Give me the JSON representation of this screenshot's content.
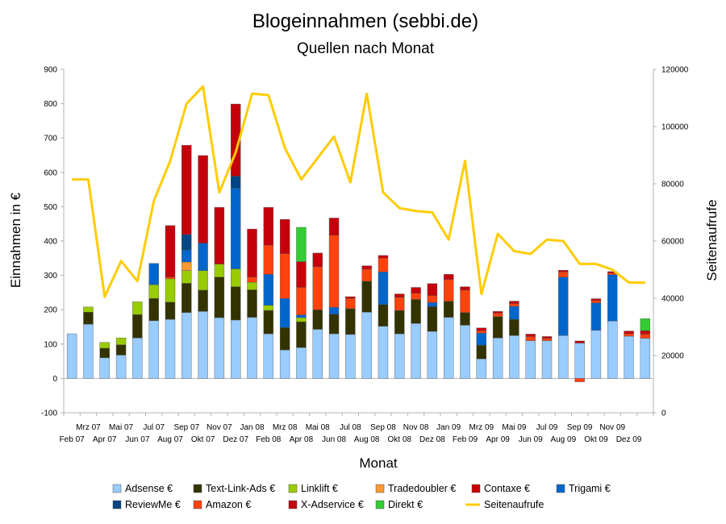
{
  "chart_data": {
    "type": "bar",
    "stacked": true,
    "title": "Blogeinnahmen (sebbi.de)",
    "subtitle": "Quellen nach Monat",
    "xlabel": "Monat",
    "ylabel": "Einnahmen in €",
    "y2label": "Seitenaufrufe",
    "ylim": [
      -100,
      900
    ],
    "yticks": [
      -100,
      0,
      100,
      200,
      300,
      400,
      500,
      600,
      700,
      800,
      900
    ],
    "y2lim": [
      0,
      120000
    ],
    "y2ticks": [
      0,
      20000,
      40000,
      60000,
      80000,
      100000,
      120000
    ],
    "grid": false,
    "legend_position": "bottom",
    "categories": [
      "Feb 07",
      "Mrz 07",
      "Apr 07",
      "Mai 07",
      "Jun 07",
      "Jul 07",
      "Aug 07",
      "Sep 07",
      "Okt 07",
      "Nov 07",
      "Dez 07",
      "Jan 08",
      "Feb 08",
      "Mrz 08",
      "Apr 08",
      "Mai 08",
      "Jun 08",
      "Jul 08",
      "Aug 08",
      "Sep 08",
      "Okt 08",
      "Nov 08",
      "Dez 08",
      "Jan 09",
      "Feb 09",
      "Mrz 09",
      "Apr 09",
      "Mai 09",
      "Jun 09",
      "Jul 09",
      "Aug 09",
      "Sep 09",
      "Okt 09",
      "Nov 09",
      "Dez 09",
      ""
    ],
    "series": [
      {
        "name": "Adsense €",
        "color": "#99ccff",
        "values": [
          130,
          158,
          60,
          68,
          118,
          168,
          172,
          192,
          195,
          177,
          170,
          178,
          130,
          83,
          90,
          143,
          130,
          128,
          193,
          152,
          130,
          160,
          137,
          178,
          155,
          57,
          118,
          125,
          110,
          110,
          125,
          103,
          140,
          167,
          123,
          117
        ]
      },
      {
        "name": "Text-Link-Ads €",
        "color": "#333300",
        "values": [
          0,
          35,
          28,
          30,
          68,
          65,
          50,
          85,
          62,
          118,
          97,
          80,
          68,
          65,
          75,
          57,
          57,
          75,
          90,
          63,
          68,
          70,
          72,
          47,
          37,
          40,
          62,
          47,
          0,
          0,
          0,
          0,
          0,
          0,
          0,
          0
        ]
      },
      {
        "name": "Linklift €",
        "color": "#99cc00",
        "values": [
          0,
          15,
          17,
          20,
          37,
          40,
          68,
          37,
          57,
          38,
          52,
          22,
          15,
          0,
          12,
          0,
          0,
          0,
          0,
          0,
          0,
          0,
          0,
          0,
          0,
          0,
          0,
          0,
          0,
          0,
          0,
          0,
          0,
          0,
          0,
          0
        ]
      },
      {
        "name": "Tradedoubler €",
        "color": "#ff9933",
        "values": [
          0,
          0,
          0,
          0,
          0,
          0,
          0,
          25,
          0,
          0,
          0,
          0,
          0,
          0,
          0,
          0,
          0,
          0,
          0,
          0,
          0,
          0,
          0,
          0,
          0,
          0,
          0,
          0,
          0,
          0,
          0,
          0,
          0,
          0,
          0,
          0
        ]
      },
      {
        "name": "Contaxe €",
        "color": "#cc0000",
        "values": [
          0,
          0,
          0,
          0,
          0,
          0,
          0,
          0,
          0,
          0,
          0,
          0,
          0,
          0,
          0,
          0,
          0,
          0,
          0,
          0,
          0,
          0,
          0,
          0,
          0,
          0,
          0,
          0,
          0,
          0,
          0,
          0,
          0,
          0,
          0,
          0
        ]
      },
      {
        "name": "Trigami €",
        "color": "#0066cc",
        "values": [
          0,
          0,
          0,
          0,
          0,
          62,
          0,
          35,
          80,
          0,
          235,
          0,
          90,
          85,
          8,
          0,
          20,
          0,
          0,
          95,
          0,
          0,
          12,
          0,
          0,
          35,
          0,
          38,
          0,
          0,
          170,
          0,
          80,
          135,
          0,
          0
        ]
      },
      {
        "name": "ReviewMe €",
        "color": "#004586",
        "values": [
          0,
          0,
          0,
          0,
          0,
          0,
          0,
          45,
          0,
          0,
          35,
          0,
          0,
          0,
          0,
          0,
          0,
          0,
          0,
          0,
          0,
          0,
          0,
          0,
          0,
          0,
          0,
          0,
          0,
          0,
          0,
          0,
          0,
          0,
          0,
          0
        ]
      },
      {
        "name": "Amazon €",
        "color": "#ff420e",
        "values": [
          0,
          0,
          0,
          0,
          0,
          0,
          5,
          0,
          0,
          0,
          0,
          15,
          85,
          130,
          80,
          125,
          210,
          30,
          35,
          40,
          38,
          18,
          20,
          63,
          65,
          7,
          10,
          8,
          12,
          7,
          15,
          -10,
          7,
          5,
          7,
          12
        ]
      },
      {
        "name": "X-Adservice €",
        "color": "#c5000b",
        "values": [
          0,
          0,
          0,
          0,
          0,
          0,
          150,
          260,
          255,
          165,
          210,
          140,
          110,
          100,
          75,
          40,
          50,
          5,
          10,
          8,
          10,
          17,
          35,
          15,
          10,
          8,
          5,
          7,
          7,
          5,
          5,
          6,
          5,
          4,
          8,
          10
        ]
      },
      {
        "name": "Direkt €",
        "color": "#33cc33",
        "values": [
          0,
          0,
          0,
          0,
          0,
          0,
          0,
          0,
          0,
          0,
          0,
          0,
          0,
          0,
          100,
          0,
          0,
          0,
          0,
          0,
          0,
          0,
          0,
          0,
          0,
          0,
          0,
          0,
          0,
          0,
          0,
          0,
          0,
          0,
          0,
          35
        ]
      }
    ],
    "line_series": {
      "name": "Seitenaufrufe",
      "color": "#ffcc00",
      "axis": "right",
      "values": [
        81500,
        81500,
        40500,
        53000,
        46000,
        74000,
        88000,
        108000,
        114000,
        77000,
        91000,
        111500,
        111000,
        92500,
        81500,
        89000,
        96500,
        80500,
        111500,
        77000,
        71500,
        70500,
        70000,
        60500,
        88000,
        41500,
        62500,
        56500,
        55500,
        60500,
        60000,
        52000,
        52000,
        50000,
        45500,
        45500
      ]
    }
  }
}
